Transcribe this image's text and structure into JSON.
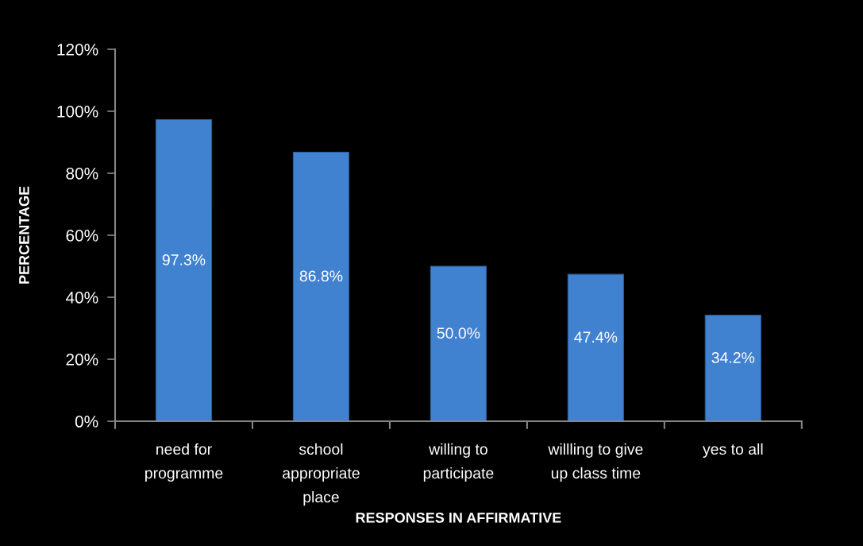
{
  "chart_data": {
    "type": "bar",
    "xlabel": "RESPONSES IN AFFIRMATIVE",
    "ylabel": "PERCENTAGE",
    "categories": [
      "need for\nprogramme",
      "school\nappropriate\nplace",
      "willing to\nparticipate",
      "willling to give\nup class time",
      "yes to all"
    ],
    "values": [
      97.3,
      86.8,
      50.0,
      47.4,
      34.2
    ],
    "color": "#4081d0",
    "value_labels": [
      "97.3%",
      "86.8%",
      "50.0%",
      "47.4%",
      "34.2%"
    ],
    "ylim": [
      0,
      120
    ],
    "yticks": [
      {
        "value": 0,
        "label": "0%"
      },
      {
        "value": 20,
        "label": "20%"
      },
      {
        "value": 40,
        "label": "40%"
      },
      {
        "value": 60,
        "label": "60%"
      },
      {
        "value": 80,
        "label": "80%"
      },
      {
        "value": 100,
        "label": "100%"
      },
      {
        "value": 120,
        "label": "120%"
      }
    ],
    "grid": false,
    "legend": false
  }
}
